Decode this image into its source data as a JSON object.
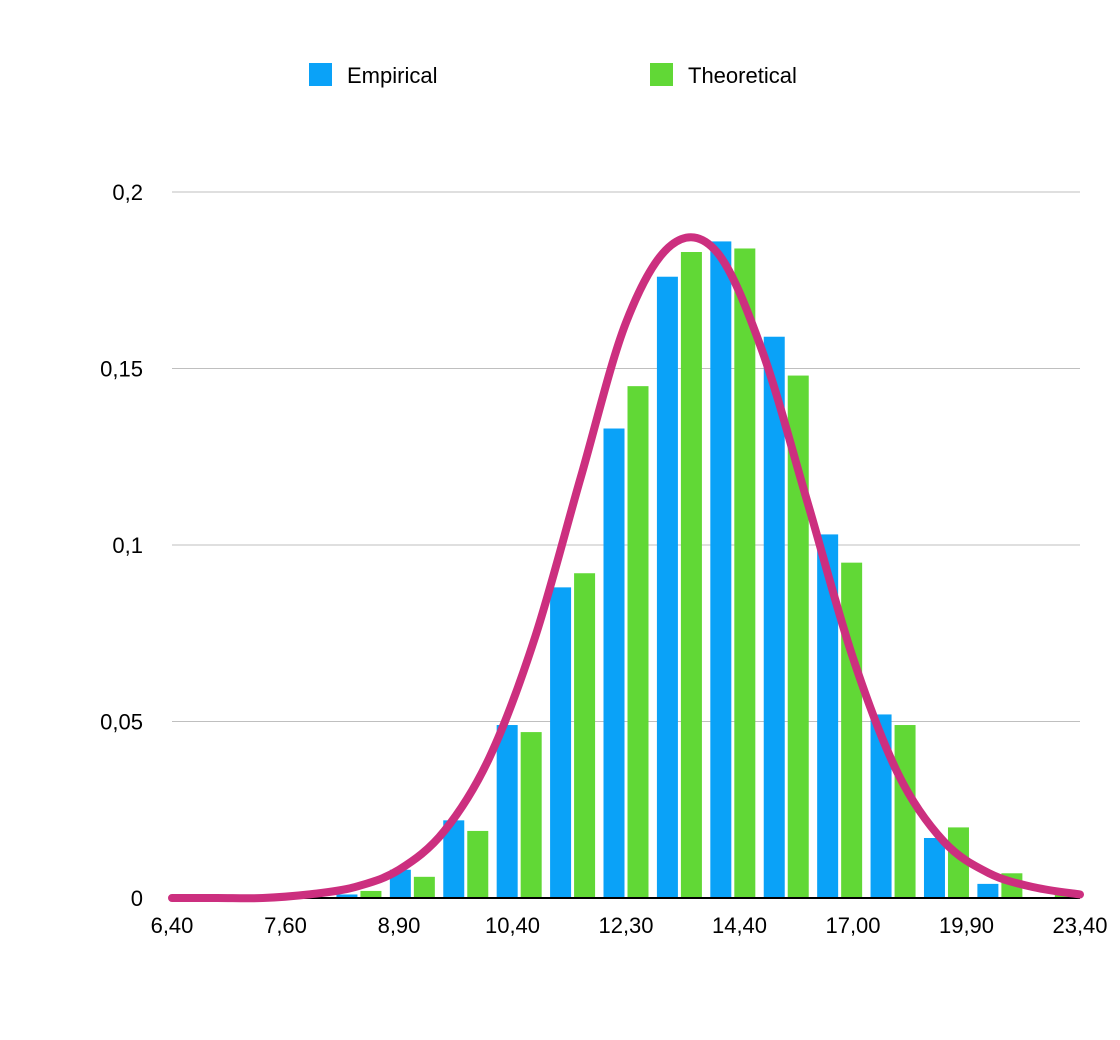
{
  "colors": {
    "empirical": "#0aa2f8",
    "theoretical": "#61d836",
    "curve": "#cc2f7f",
    "grid": "#bfbfbf",
    "axis": "#000000"
  },
  "chart_data": {
    "type": "bar",
    "ylim": [
      0,
      0.2
    ],
    "grid": true,
    "legend_position": "top-center",
    "y_ticks": [
      "0",
      "0,05",
      "0,1",
      "0,15",
      "0,2"
    ],
    "x_tick_labels": [
      "6,40",
      "7,60",
      "8,90",
      "10,40",
      "12,30",
      "14,40",
      "17,00",
      "19,90",
      "23,40"
    ],
    "series": [
      {
        "name": "Empirical",
        "values": [
          0,
          0,
          0,
          0.001,
          0.008,
          0.022,
          0.049,
          0.088,
          0.133,
          0.176,
          0.186,
          0.159,
          0.103,
          0.052,
          0.017,
          0.004,
          0
        ]
      },
      {
        "name": "Theoretical",
        "values": [
          0,
          0,
          0,
          0.002,
          0.006,
          0.019,
          0.047,
          0.092,
          0.145,
          0.183,
          0.184,
          0.148,
          0.095,
          0.049,
          0.02,
          0.007,
          0.002
        ]
      }
    ],
    "curve": [
      0,
      0,
      0,
      0.001,
      0.003,
      0.008,
      0.019,
      0.04,
      0.074,
      0.119,
      0.163,
      0.185,
      0.183,
      0.155,
      0.112,
      0.068,
      0.035,
      0.016,
      0.007,
      0.003,
      0.001
    ]
  }
}
